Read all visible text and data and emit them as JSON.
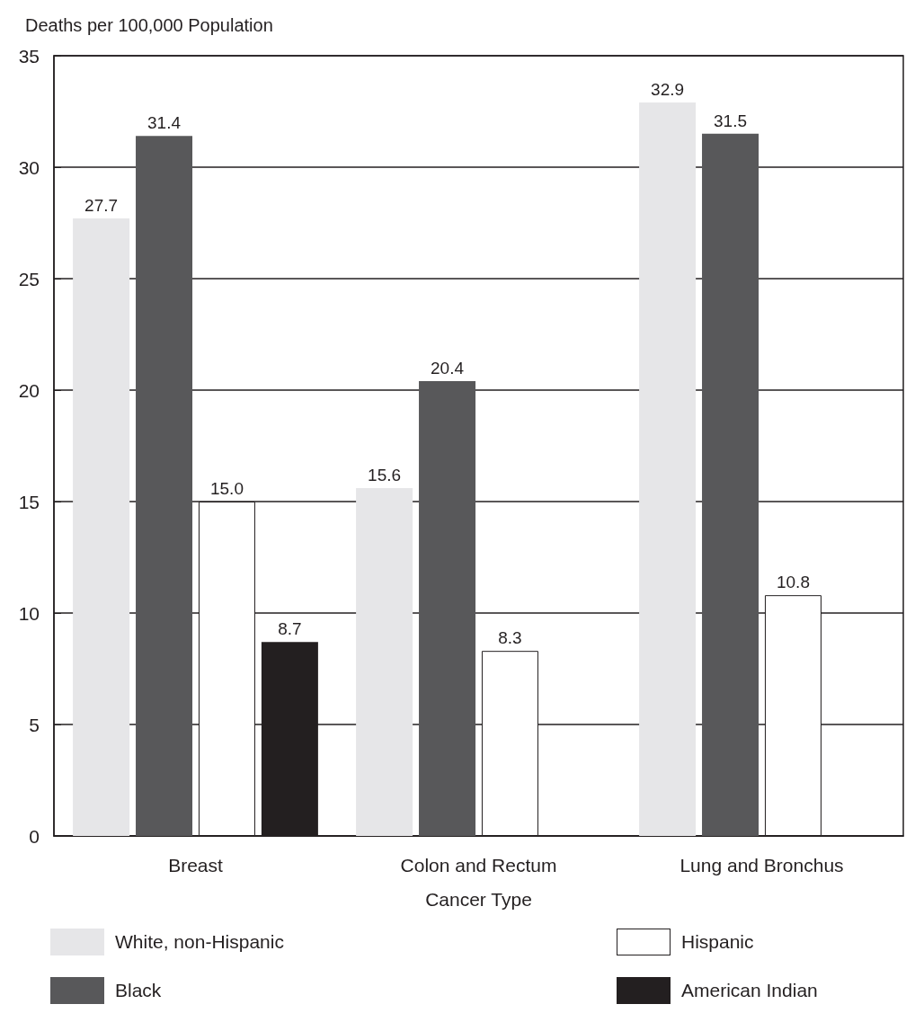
{
  "chart_data": {
    "type": "bar",
    "ylabel": "Deaths per 100,000 Population",
    "xlabel": "Cancer Type",
    "categories": [
      "Breast",
      "Colon and Rectum",
      "Lung and Bronchus"
    ],
    "series": [
      {
        "name": "White, non-Hispanic",
        "color": "#e6e6e8",
        "values": [
          27.7,
          15.6,
          32.9
        ],
        "value_labels": [
          "27.7",
          "15.6",
          "32.9"
        ]
      },
      {
        "name": "Black",
        "color": "#58585a",
        "values": [
          31.4,
          20.4,
          31.5
        ],
        "value_labels": [
          "31.4",
          "20.4",
          "31.5"
        ]
      },
      {
        "name": "Hispanic",
        "color": "#ffffff",
        "values": [
          15.0,
          8.3,
          10.8
        ],
        "value_labels": [
          "15.0",
          "8.3",
          "10.8"
        ]
      },
      {
        "name": "American Indian",
        "color": "#231f20",
        "values": [
          8.7,
          null,
          null
        ],
        "value_labels": [
          "8.7",
          null,
          null
        ]
      }
    ],
    "ylim": [
      0,
      35
    ],
    "yticks": [
      0,
      5,
      10,
      15,
      20,
      25,
      30,
      35
    ],
    "grid": "y",
    "legend": "bottom"
  }
}
